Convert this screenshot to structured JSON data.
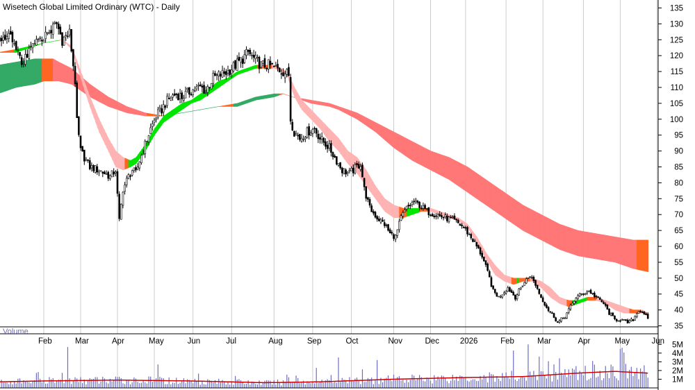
{
  "chart_data": {
    "type": "candlestick",
    "title": "Wisetech Global Limited Ordinary (WTC) - Daily",
    "volume_label": "Volume",
    "price_axis": {
      "ylim": [
        32.5,
        137.5
      ],
      "ticks": [
        35,
        40,
        45,
        50,
        55,
        60,
        65,
        70,
        75,
        80,
        85,
        90,
        95,
        100,
        105,
        110,
        115,
        120,
        125,
        130,
        135
      ]
    },
    "volume_axis": {
      "ylim": [
        0,
        5500000
      ],
      "ticks": [
        {
          "value": 1000000,
          "label": "1M"
        },
        {
          "value": 2000000,
          "label": "2M"
        },
        {
          "value": 3000000,
          "label": "3M"
        },
        {
          "value": 4000000,
          "label": "4M"
        },
        {
          "value": 5000000,
          "label": "5M"
        }
      ]
    },
    "x_labels": [
      {
        "label": "Feb",
        "day": 0
      },
      {
        "label": "Mar",
        "day": 20
      },
      {
        "label": "Apr",
        "day": 40
      },
      {
        "label": "May",
        "day": 60
      },
      {
        "label": "Jun",
        "day": 81
      },
      {
        "label": "Jul",
        "day": 102
      },
      {
        "label": "Aug",
        "day": 125
      },
      {
        "label": "Sep",
        "day": 146
      },
      {
        "label": "Oct",
        "day": 167
      },
      {
        "label": "Nov",
        "day": 190
      },
      {
        "label": "Dec",
        "day": 210
      },
      {
        "label": "2026",
        "day": 229
      },
      {
        "label": "Feb",
        "day": 251
      },
      {
        "label": "Mar",
        "day": 271
      },
      {
        "label": "Apr",
        "day": 293
      },
      {
        "label": "May",
        "day": 313
      },
      {
        "label": "Jun",
        "day": 333
      }
    ],
    "price_path": [
      [
        -25,
        125
      ],
      [
        -20,
        127
      ],
      [
        -15,
        122
      ],
      [
        -12,
        118
      ],
      [
        -8,
        121
      ],
      [
        -4,
        124
      ],
      [
        0,
        126
      ],
      [
        4,
        128
      ],
      [
        7,
        130
      ],
      [
        10,
        125
      ],
      [
        14,
        127
      ],
      [
        17,
        112
      ],
      [
        18,
        99
      ],
      [
        20,
        90
      ],
      [
        22,
        88
      ],
      [
        25,
        85
      ],
      [
        30,
        84
      ],
      [
        33,
        83
      ],
      [
        36,
        82
      ],
      [
        39,
        84
      ],
      [
        41,
        68
      ],
      [
        43,
        78
      ],
      [
        46,
        82
      ],
      [
        48,
        84
      ],
      [
        50,
        83
      ],
      [
        52,
        87
      ],
      [
        55,
        92
      ],
      [
        58,
        97
      ],
      [
        61,
        101
      ],
      [
        64,
        103
      ],
      [
        66,
        105
      ],
      [
        69,
        107
      ],
      [
        72,
        108
      ],
      [
        75,
        107
      ],
      [
        80,
        109
      ],
      [
        85,
        110
      ],
      [
        88,
        109
      ],
      [
        92,
        113
      ],
      [
        96,
        114
      ],
      [
        100,
        115
      ],
      [
        104,
        117
      ],
      [
        108,
        119
      ],
      [
        111,
        121
      ],
      [
        114,
        119
      ],
      [
        118,
        117
      ],
      [
        122,
        117
      ],
      [
        126,
        116
      ],
      [
        130,
        115
      ],
      [
        133,
        114
      ],
      [
        134,
        100
      ],
      [
        136,
        96
      ],
      [
        139,
        94
      ],
      [
        143,
        96
      ],
      [
        147,
        97
      ],
      [
        150,
        94
      ],
      [
        155,
        91
      ],
      [
        159,
        87
      ],
      [
        162,
        84
      ],
      [
        166,
        83
      ],
      [
        170,
        85
      ],
      [
        172,
        86
      ],
      [
        174,
        78
      ],
      [
        177,
        72
      ],
      [
        181,
        69
      ],
      [
        185,
        67
      ],
      [
        188,
        64
      ],
      [
        191,
        63
      ],
      [
        194,
        69
      ],
      [
        197,
        72
      ],
      [
        201,
        74
      ],
      [
        204,
        73
      ],
      [
        208,
        71
      ],
      [
        213,
        70
      ],
      [
        218,
        69
      ],
      [
        223,
        68
      ],
      [
        228,
        66
      ],
      [
        233,
        62
      ],
      [
        238,
        57
      ],
      [
        242,
        50
      ],
      [
        244,
        46
      ],
      [
        247,
        44
      ],
      [
        252,
        47
      ],
      [
        256,
        44
      ],
      [
        260,
        48
      ],
      [
        264,
        51
      ],
      [
        267,
        48
      ],
      [
        270,
        44
      ],
      [
        274,
        40
      ],
      [
        277,
        38
      ],
      [
        279,
        36
      ],
      [
        283,
        38
      ],
      [
        286,
        41
      ],
      [
        289,
        44
      ],
      [
        292,
        45
      ],
      [
        296,
        46
      ],
      [
        300,
        44
      ],
      [
        304,
        42
      ],
      [
        307,
        39
      ],
      [
        310,
        37
      ],
      [
        313,
        37
      ],
      [
        317,
        36
      ],
      [
        320,
        37
      ],
      [
        323,
        40
      ],
      [
        326,
        39
      ],
      [
        328,
        37
      ]
    ],
    "moving_average_bands": {
      "short_term": [
        [
          -25,
          121,
          121
        ],
        [
          -15,
          121,
          122
        ],
        [
          0,
          124,
          124
        ],
        [
          10,
          125,
          125
        ],
        [
          15,
          123,
          122
        ],
        [
          20,
          115,
          113
        ],
        [
          25,
          107,
          104
        ],
        [
          30,
          100,
          96
        ],
        [
          35,
          94,
          90
        ],
        [
          39,
          90,
          85
        ],
        [
          43,
          88,
          84
        ],
        [
          47,
          87,
          85
        ],
        [
          50,
          88,
          86
        ],
        [
          55,
          92,
          90
        ],
        [
          60,
          97,
          95
        ],
        [
          65,
          101,
          99
        ],
        [
          70,
          103,
          101
        ],
        [
          75,
          105,
          103
        ],
        [
          80,
          106,
          105
        ],
        [
          85,
          108,
          106
        ],
        [
          90,
          110,
          108
        ],
        [
          95,
          112,
          110
        ],
        [
          100,
          113,
          112
        ],
        [
          105,
          115,
          114
        ],
        [
          110,
          116,
          115
        ],
        [
          115,
          117,
          116
        ],
        [
          120,
          117,
          116
        ],
        [
          125,
          117,
          116
        ],
        [
          129,
          116,
          115
        ],
        [
          132,
          115,
          114
        ],
        [
          136,
          110,
          107
        ],
        [
          140,
          106,
          103
        ],
        [
          145,
          103,
          100
        ],
        [
          150,
          100,
          97
        ],
        [
          155,
          97,
          93
        ],
        [
          160,
          94,
          90
        ],
        [
          165,
          90,
          86
        ],
        [
          170,
          88,
          83
        ],
        [
          175,
          84,
          79
        ],
        [
          180,
          79,
          75
        ],
        [
          185,
          75,
          71
        ],
        [
          190,
          73,
          69
        ],
        [
          195,
          72,
          69
        ],
        [
          200,
          72,
          70
        ],
        [
          205,
          72,
          71
        ],
        [
          210,
          72,
          71
        ],
        [
          215,
          71,
          70
        ],
        [
          220,
          70,
          69
        ],
        [
          225,
          69,
          68
        ],
        [
          230,
          67,
          66
        ],
        [
          235,
          63,
          61
        ],
        [
          240,
          58,
          56
        ],
        [
          245,
          54,
          51
        ],
        [
          250,
          51,
          49
        ],
        [
          255,
          50,
          48
        ],
        [
          260,
          50,
          49
        ],
        [
          265,
          50,
          49
        ],
        [
          270,
          49,
          47
        ],
        [
          275,
          47,
          44
        ],
        [
          280,
          44,
          42
        ],
        [
          285,
          43,
          41
        ],
        [
          290,
          43,
          42
        ],
        [
          295,
          44,
          43
        ],
        [
          300,
          44,
          43
        ],
        [
          305,
          43,
          42
        ],
        [
          310,
          42,
          40
        ],
        [
          315,
          41,
          39
        ],
        [
          320,
          40,
          39
        ],
        [
          325,
          40,
          39
        ],
        [
          328,
          39,
          38
        ]
      ],
      "long_term": [
        [
          -25,
          117,
          108
        ],
        [
          -15,
          118,
          110
        ],
        [
          -5,
          119,
          111
        ],
        [
          0,
          119,
          112
        ],
        [
          5,
          119,
          112
        ],
        [
          8,
          118,
          112
        ],
        [
          15,
          116,
          111
        ],
        [
          25,
          111,
          107
        ],
        [
          35,
          107,
          104
        ],
        [
          45,
          104,
          102
        ],
        [
          55,
          102,
          101
        ],
        [
          65,
          101,
          101
        ],
        [
          75,
          102,
          102
        ],
        [
          85,
          103,
          103
        ],
        [
          95,
          104,
          104
        ],
        [
          105,
          105,
          104
        ],
        [
          115,
          107,
          106
        ],
        [
          125,
          108,
          107
        ],
        [
          130,
          108,
          108
        ],
        [
          135,
          107,
          107
        ],
        [
          145,
          106,
          105
        ],
        [
          155,
          105,
          104
        ],
        [
          160,
          104,
          103
        ],
        [
          170,
          102,
          100
        ],
        [
          180,
          99,
          96
        ],
        [
          190,
          96,
          91
        ],
        [
          200,
          93,
          87
        ],
        [
          210,
          90,
          84
        ],
        [
          220,
          88,
          81
        ],
        [
          230,
          85,
          77
        ],
        [
          240,
          81,
          73
        ],
        [
          250,
          77,
          69
        ],
        [
          260,
          73,
          65
        ],
        [
          270,
          70,
          62
        ],
        [
          280,
          67,
          59
        ],
        [
          290,
          65,
          57
        ],
        [
          300,
          64,
          56
        ],
        [
          310,
          63,
          55
        ],
        [
          320,
          62,
          53
        ],
        [
          328,
          62,
          52
        ]
      ]
    },
    "volume": {
      "average_path": [
        [
          -25,
          700000
        ],
        [
          0,
          800000
        ],
        [
          40,
          900000
        ],
        [
          80,
          800000
        ],
        [
          120,
          600000
        ],
        [
          150,
          700000
        ],
        [
          190,
          1000000
        ],
        [
          230,
          1200000
        ],
        [
          260,
          1300000
        ],
        [
          290,
          1700000
        ],
        [
          310,
          1900000
        ],
        [
          328,
          1700000
        ]
      ],
      "spikes": [
        {
          "day": 13,
          "value": 4700000
        },
        {
          "day": 62,
          "value": 2700000
        },
        {
          "day": 148,
          "value": 2300000
        },
        {
          "day": 160,
          "value": 3500000
        },
        {
          "day": 181,
          "value": 3200000
        },
        {
          "day": 255,
          "value": 4300000
        },
        {
          "day": 263,
          "value": 5000000
        },
        {
          "day": 269,
          "value": 3600000
        },
        {
          "day": 277,
          "value": 2700000
        },
        {
          "day": 280,
          "value": 3400000
        },
        {
          "day": 298,
          "value": 3100000
        },
        {
          "day": 322,
          "value": 2300000
        }
      ]
    },
    "colors": {
      "candle": "#000000",
      "short_band_up": "#00e600",
      "short_band_down": "#ffb3b3",
      "short_band_transition": "#ff6622",
      "long_band_up": "#33aa66",
      "long_band_down": "#ff7777",
      "long_band_transition": "#ff6622",
      "volume_bar": "#6d6dc4",
      "volume_avg": "#cc0000",
      "grid": "#cccccc"
    }
  }
}
